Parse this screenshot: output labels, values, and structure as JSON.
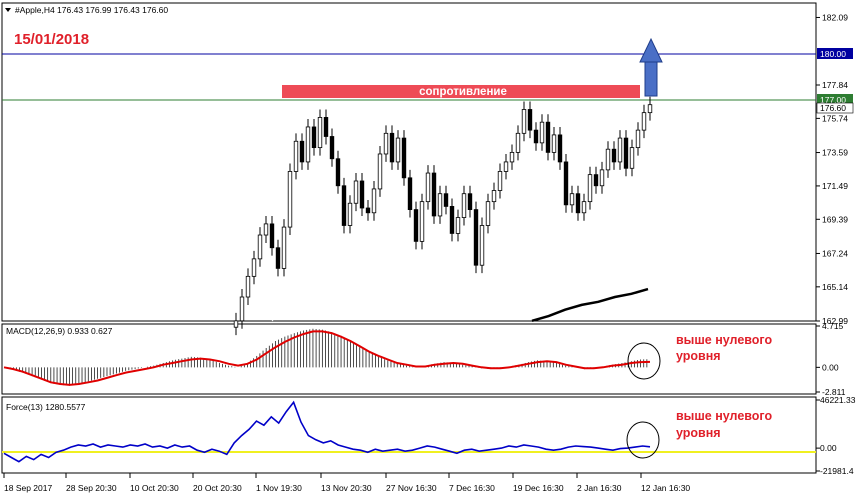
{
  "header": {
    "symbol_line": "#Apple,H4  176.43 176.99 176.43 176.60",
    "date_title": "15/01/2018"
  },
  "resistance_label": "сопротивление",
  "macd": {
    "header": "MACD(12,26,9) 0.933 0.627",
    "note": [
      "выше нулевого",
      "уровня"
    ]
  },
  "force": {
    "header": "Force(13) 1280.5577",
    "note": [
      "выше нулевого",
      "уровня"
    ]
  },
  "colors": {
    "resistance_box": "#ee4b56",
    "level_180": "#0000a0",
    "level_177": "#2e7d32",
    "arrow": "#4a6fc6",
    "macd_signal": "#e00000",
    "force_line": "#0000c8",
    "force_zero": "#f0f020",
    "ma_fast": "#ffffff",
    "ma_slow": "#000000"
  },
  "chart_data": [
    {
      "type": "candlestick",
      "title": "#Apple,H4",
      "ylim": [
        162.99,
        183.0
      ],
      "y_ticks": [
        "182.09",
        "180.00",
        "177.84",
        "177.00",
        "176.60",
        "175.74",
        "173.59",
        "171.49",
        "169.39",
        "167.24",
        "165.14",
        "162.99"
      ],
      "x_ticks": [
        "18 Sep 2017",
        "28 Sep 20:30",
        "10 Oct 20:30",
        "20 Oct 20:30",
        "1 Nov 19:30",
        "13 Nov 20:30",
        "27 Nov 16:30",
        "7 Dec 16:30",
        "19 Dec 16:30",
        "2 Jan 16:30",
        "12 Jan 16:30"
      ],
      "levels": [
        {
          "label": "180.00",
          "value": 180.0
        },
        {
          "label": "177.00",
          "value": 177.0
        }
      ],
      "last_price": 176.6,
      "close_series": [
        163.0,
        164.5,
        165.8,
        166.9,
        168.4,
        169.1,
        167.6,
        166.3,
        168.9,
        172.4,
        174.3,
        173.0,
        175.2,
        173.9,
        175.8,
        174.6,
        173.2,
        171.5,
        169.0,
        170.4,
        171.8,
        170.1,
        169.8,
        171.3,
        173.5,
        174.8,
        173.0,
        174.5,
        172.0,
        170.0,
        168.0,
        170.5,
        172.3,
        169.6,
        171.0,
        170.2,
        168.5,
        169.5,
        171.0,
        170.0,
        166.5,
        169.0,
        170.5,
        171.2,
        172.4,
        173.0,
        173.6,
        174.8,
        176.3,
        175.0,
        174.2,
        175.5,
        173.6,
        174.7,
        173.0,
        170.3,
        171.0,
        169.8,
        170.5,
        172.2,
        171.5,
        172.5,
        173.8,
        173.0,
        174.5,
        172.6,
        173.9,
        175.0,
        176.1,
        176.6
      ],
      "ma_fast": [
        163.0,
        163.8,
        165.5,
        167.3,
        168.9,
        170.3,
        171.2,
        171.7,
        171.5,
        171.8,
        172.3,
        172.4,
        172.7,
        173.0,
        172.8,
        172.2,
        171.9,
        171.7,
        171.4,
        171.2,
        171.1,
        170.9,
        170.8,
        170.7,
        170.6,
        170.5,
        170.4,
        170.3,
        170.2,
        170.5,
        170.7,
        170.4,
        170.6,
        170.9,
        171.3,
        171.8,
        172.4,
        172.9,
        173.3,
        173.6,
        173.5,
        173.3,
        173.0,
        172.8,
        172.9,
        173.1,
        173.4,
        173.8,
        174.1,
        174.3,
        174.5,
        174.6,
        174.6,
        174.4
      ],
      "ma_slow": [
        163.0,
        163.3,
        163.7,
        164.0,
        164.2,
        164.5,
        164.7,
        165.0
      ]
    },
    {
      "type": "bar+line",
      "title": "MACD(12,26,9)",
      "ylim": [
        -2.811,
        4.715
      ],
      "y_ticks": [
        "4.715",
        "0.00",
        "-2.811"
      ],
      "histogram": [
        0.0,
        -0.3,
        -0.6,
        -1.0,
        -1.4,
        -1.8,
        -2.0,
        -2.1,
        -1.9,
        -1.6,
        -1.3,
        -1.0,
        -0.7,
        -0.4,
        -0.2,
        0.0,
        0.2,
        0.5,
        0.8,
        1.0,
        1.2,
        1.1,
        0.9,
        0.5,
        0.2,
        0.0,
        0.5,
        1.3,
        2.2,
        3.0,
        3.5,
        3.9,
        4.2,
        4.4,
        4.3,
        4.0,
        3.6,
        3.0,
        2.4,
        1.8,
        1.2,
        0.8,
        0.4,
        0.2,
        0.0,
        0.2,
        0.4,
        0.6,
        0.5,
        0.3,
        0.1,
        -0.1,
        -0.2,
        -0.1,
        0.1,
        0.3,
        0.6,
        0.8,
        0.7,
        0.5,
        0.2,
        0.0,
        -0.2,
        -0.1,
        0.1,
        0.3,
        0.5,
        0.7,
        0.9,
        0.93
      ],
      "signal": [
        0.0,
        -0.2,
        -0.5,
        -0.9,
        -1.3,
        -1.7,
        -1.9,
        -2.0,
        -1.9,
        -1.7,
        -1.5,
        -1.2,
        -0.9,
        -0.6,
        -0.4,
        -0.2,
        0.0,
        0.3,
        0.5,
        0.7,
        0.9,
        1.0,
        0.9,
        0.7,
        0.4,
        0.2,
        0.4,
        0.9,
        1.6,
        2.3,
        2.9,
        3.4,
        3.8,
        4.1,
        4.1,
        3.9,
        3.5,
        3.0,
        2.4,
        1.8,
        1.3,
        0.9,
        0.5,
        0.3,
        0.1,
        0.1,
        0.3,
        0.4,
        0.5,
        0.4,
        0.2,
        0.0,
        -0.1,
        -0.1,
        0.0,
        0.2,
        0.4,
        0.6,
        0.7,
        0.6,
        0.3,
        0.1,
        -0.1,
        -0.1,
        0.0,
        0.2,
        0.3,
        0.5,
        0.6,
        0.627
      ]
    },
    {
      "type": "line",
      "title": "Force(13)",
      "ylim": [
        -21981.4,
        46221.3
      ],
      "y_ticks": [
        "46221.33",
        "0.00",
        "-21981.4"
      ],
      "values": [
        -5000,
        -9000,
        -13000,
        -8000,
        -11000,
        -6000,
        -9000,
        -4000,
        -2000,
        1000,
        3000,
        2000,
        4000,
        1000,
        3000,
        2000,
        1000,
        3000,
        2000,
        4000,
        1000,
        2000,
        0,
        3000,
        1000,
        2000,
        -2000,
        -4000,
        -1000,
        -3000,
        -6000,
        5000,
        12000,
        18000,
        26000,
        22000,
        30000,
        24000,
        35000,
        44000,
        25000,
        12000,
        8000,
        5000,
        7000,
        3000,
        1000,
        -1000,
        -2000,
        -4000,
        -1000,
        -3000,
        -2000,
        -1000,
        -3000,
        -2000,
        0,
        2000,
        1000,
        -1000,
        -3000,
        -5000,
        -2000,
        -1000,
        -3000,
        -2000,
        -1000,
        0,
        2000,
        1000,
        3000,
        2000,
        1000,
        -1000,
        -2000,
        -1000,
        1000,
        2000,
        1500,
        1000,
        0,
        -1000,
        -2000,
        -500,
        0,
        1000,
        2000,
        1280
      ]
    }
  ]
}
